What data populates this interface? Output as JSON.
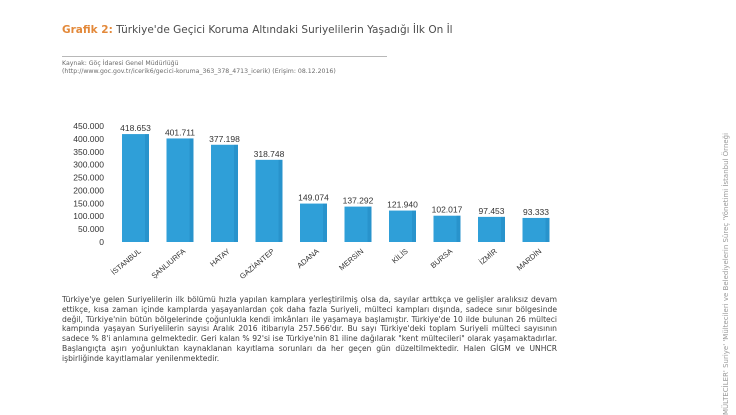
{
  "figure": {
    "label": "Grafik 2:",
    "title": "Türkiye'de Geçici Koruma Altındaki Suriyelilerin Yaşadığı İlk On İl",
    "source_line1": "Kaynak: Göç İdaresi Genel Müdürlüğü",
    "source_line2": "(http://www.goc.gov.tr/icerik6/gecici-koruma_363_378_4713_icerik) (Erişim: 08.12.2016)"
  },
  "chart_data": {
    "type": "bar",
    "categories": [
      "İSTANBUL",
      "ŞANLIURFA",
      "HATAY",
      "GAZİANTEP",
      "ADANA",
      "MERSİN",
      "KİLİS",
      "BURSA",
      "İZMİR",
      "MARDİN"
    ],
    "values": [
      418653,
      401711,
      377198,
      318748,
      149074,
      137292,
      121940,
      102017,
      97453,
      93333
    ],
    "value_labels": [
      "418.653",
      "401.711",
      "377.198",
      "318.748",
      "149.074",
      "137.292",
      "121.940",
      "102.017",
      "97.453",
      "93.333"
    ],
    "yticks": [
      0,
      50000,
      100000,
      150000,
      200000,
      250000,
      300000,
      350000,
      400000,
      450000
    ],
    "ytick_labels": [
      "0",
      "50.000",
      "100.000",
      "150.000",
      "200.000",
      "250.000",
      "300.000",
      "350.000",
      "400.000",
      "450.000"
    ],
    "ylim": [
      0,
      450000
    ],
    "title": "",
    "xlabel": "",
    "ylabel": "",
    "grid": false,
    "colors": {
      "bar": "#2f9fd8",
      "bar_dark": "#1d7fb8",
      "text": "#333333"
    }
  },
  "body_paragraph": "Türkiye'ye gelen Suriyelilerin ilk bölümü hızla yapılan kamplara yerleştirilmiş olsa da, sayılar arttıkça ve gelişler aralıksız devam ettikçe, kısa zaman içinde kamplarda yaşayanlardan çok daha fazla Suriyeli, mülteci kampları dışında, sadece sınır bölgesinde değil, Türkiye'nin bütün bölgelerinde çoğunlukla kendi imkânları ile yaşamaya başlamıştır. Türkiye'de 10 ilde bulunan 26 mülteci kampında yaşayan Suriyelilerin sayısı Aralık 2016 itibarıyla 257.566'dır. Bu sayı Türkiye'deki toplam Suriyeli mülteci sayısının sadece % 8'i anlamına gelmektedir. Geri kalan % 92'si ise Türkiye'nin 81 iline dağılarak \"kent mültecileri\" olarak yaşamaktadırlar. Başlangıçta aşırı yoğunluktan kaynaklanan kayıtlama sorunları da her geçen gün düzeltilmektedir. Halen GİGM ve UNHCR işbirliğinde kayıtlamalar yenilenmektedir.",
  "side_text": "MÜLTECİLER' Suriye' 'Mültecileri ve Belediyelerin Süreç 'Yönetimi İstanbul Örneği"
}
